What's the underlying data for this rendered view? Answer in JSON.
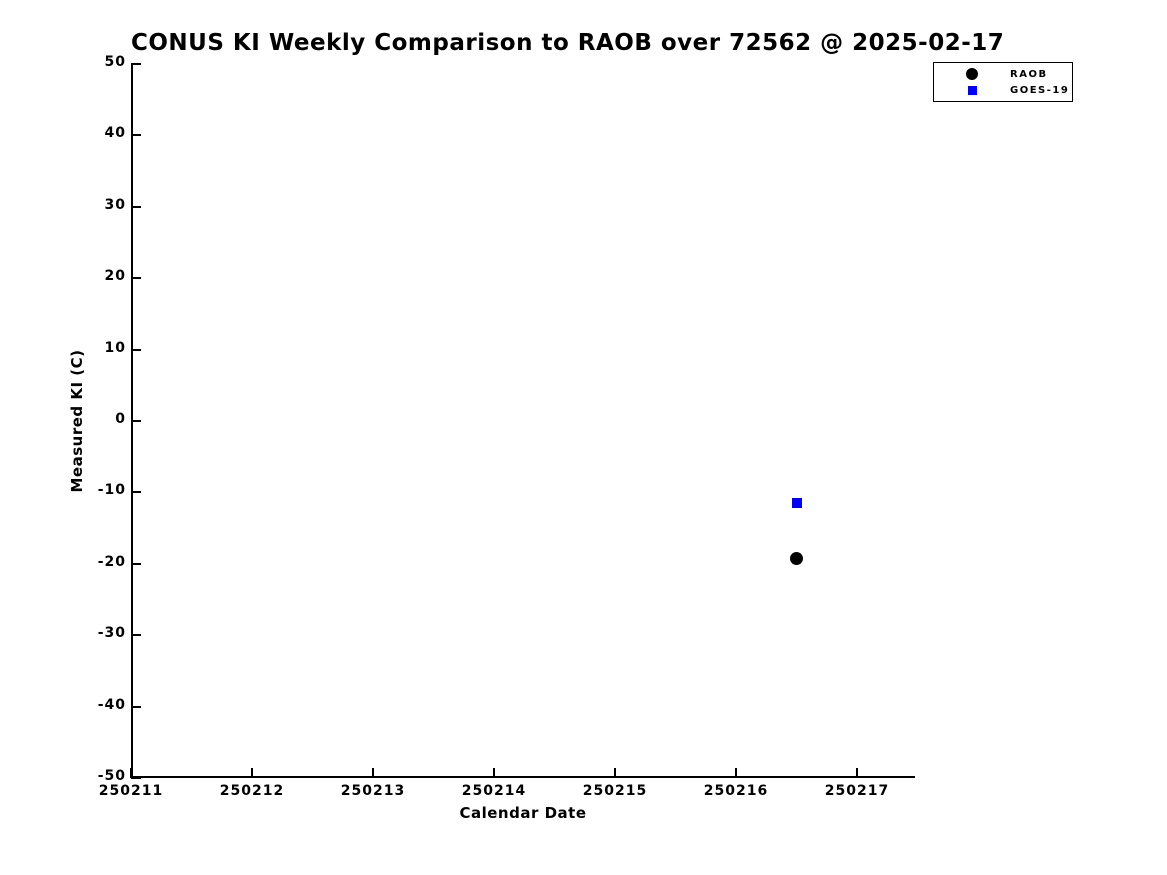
{
  "chart_data": {
    "type": "scatter",
    "title": "CONUS KI Weekly Comparison to RAOB over 72562 @ 2025-02-17",
    "xlabel": "Calendar Date",
    "ylabel": "Measured KI (C)",
    "xlim": [
      250211,
      250217.5
    ],
    "ylim": [
      -50,
      50
    ],
    "x_ticks": [
      250211,
      250212,
      250213,
      250214,
      250215,
      250216,
      250217
    ],
    "y_ticks": [
      50,
      40,
      30,
      20,
      10,
      0,
      -10,
      -20,
      -30,
      -40,
      -50
    ],
    "grid": false,
    "background_color": "#ffffff",
    "axis_color": "#000000",
    "legend": {
      "position": "top-right",
      "border": true
    },
    "series": [
      {
        "name": "RAOB",
        "marker": "circle",
        "color": "#000000",
        "x": [
          250216.5
        ],
        "y": [
          -19.2
        ]
      },
      {
        "name": "GOES-19",
        "marker": "square",
        "color": "#0000ff",
        "x": [
          250216.5
        ],
        "y": [
          -11.5
        ]
      }
    ]
  }
}
